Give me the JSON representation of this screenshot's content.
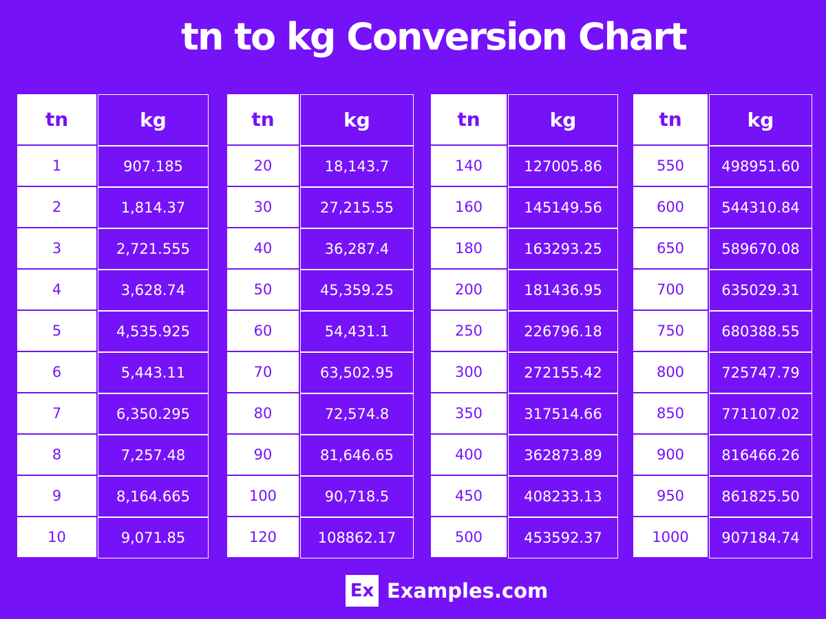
{
  "title": "tn to kg Conversion Chart",
  "tables": [
    {
      "headers": [
        "tn",
        "kg"
      ],
      "rows": [
        [
          "1",
          "907.185"
        ],
        [
          "2",
          "1,814.37"
        ],
        [
          "3",
          "2,721.555"
        ],
        [
          "4",
          "3,628.74"
        ],
        [
          "5",
          "4,535.925"
        ],
        [
          "6",
          "5,443.11"
        ],
        [
          "7",
          "6,350.295"
        ],
        [
          "8",
          "7,257.48"
        ],
        [
          "9",
          "8,164.665"
        ],
        [
          "10",
          "9,071.85"
        ]
      ]
    },
    {
      "headers": [
        "tn",
        "kg"
      ],
      "rows": [
        [
          "20",
          "18,143.7"
        ],
        [
          "30",
          "27,215.55"
        ],
        [
          "40",
          "36,287.4"
        ],
        [
          "50",
          "45,359.25"
        ],
        [
          "60",
          "54,431.1"
        ],
        [
          "70",
          "63,502.95"
        ],
        [
          "80",
          "72,574.8"
        ],
        [
          "90",
          "81,646.65"
        ],
        [
          "100",
          "90,718.5"
        ],
        [
          "120",
          "108862.17"
        ]
      ]
    },
    {
      "headers": [
        "tn",
        "kg"
      ],
      "rows": [
        [
          "140",
          "127005.86"
        ],
        [
          "160",
          "145149.56"
        ],
        [
          "180",
          "163293.25"
        ],
        [
          "200",
          "181436.95"
        ],
        [
          "250",
          "226796.18"
        ],
        [
          "300",
          "272155.42"
        ],
        [
          "350",
          "317514.66"
        ],
        [
          "400",
          "362873.89"
        ],
        [
          "450",
          "408233.13"
        ],
        [
          "500",
          "453592.37"
        ]
      ]
    },
    {
      "headers": [
        "tn",
        "kg"
      ],
      "rows": [
        [
          "550",
          "498951.60"
        ],
        [
          "600",
          "544310.84"
        ],
        [
          "650",
          "589670.08"
        ],
        [
          "700",
          "635029.31"
        ],
        [
          "750",
          "680388.55"
        ],
        [
          "800",
          "725747.79"
        ],
        [
          "850",
          "771107.02"
        ],
        [
          "900",
          "816466.26"
        ],
        [
          "950",
          "861825.50"
        ],
        [
          "1000",
          "907184.74"
        ]
      ]
    }
  ],
  "logo": {
    "icon": "Ex",
    "text": "Examples.com"
  }
}
